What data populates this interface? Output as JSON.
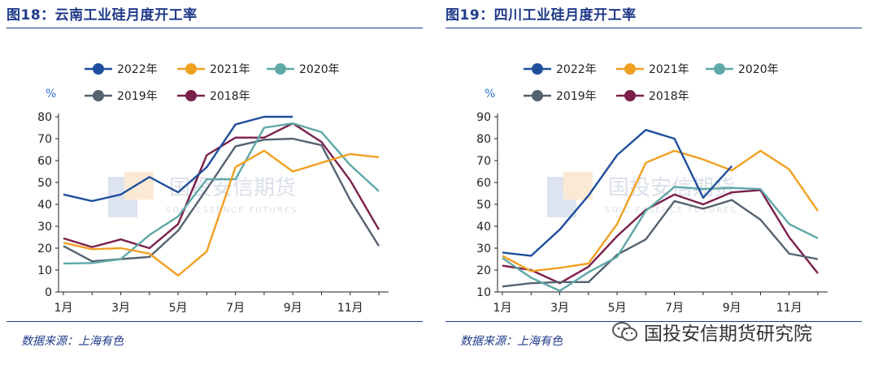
{
  "charts": [
    {
      "title": "图18：云南工业硅月度开工率",
      "source": "数据来源：上海有色",
      "watermark": {
        "name": "国投安信期货",
        "subtitle": "SDIC ESSENCE FUTURES"
      },
      "chart_data": {
        "type": "line",
        "ylabel": "%",
        "ylim": [
          0,
          80
        ],
        "yticks": [
          0,
          10,
          20,
          30,
          40,
          50,
          60,
          70,
          80
        ],
        "x": [
          1,
          2,
          3,
          4,
          5,
          6,
          7,
          8,
          9,
          10,
          11,
          12
        ],
        "xtick_positions": [
          1,
          3,
          5,
          7,
          9,
          11
        ],
        "xtick_labels": [
          "1月",
          "3月",
          "5月",
          "7月",
          "9月",
          "11月"
        ],
        "series": [
          {
            "name": "2022年",
            "color": "#1f4e9c",
            "values": [
              44.5,
              41.5,
              44.5,
              52.5,
              45.5,
              57,
              76.5,
              80,
              80,
              null,
              null,
              null
            ]
          },
          {
            "name": "2021年",
            "color": "#f0a020",
            "values": [
              22.5,
              19.5,
              20,
              17.5,
              7.5,
              18.5,
              57,
              64.5,
              55,
              59,
              63,
              61.5
            ]
          },
          {
            "name": "2020年",
            "color": "#5fa8a8",
            "values": [
              13,
              13.2,
              15,
              26,
              34.5,
              51.5,
              51.5,
              75,
              77,
              73,
              58,
              46
            ]
          },
          {
            "name": "2019年",
            "color": "#556270",
            "values": [
              21,
              14,
              15,
              16,
              28,
              47,
              66.5,
              69.5,
              70,
              67,
              42,
              21
            ]
          },
          {
            "name": "2018年",
            "color": "#7a1f4a",
            "values": [
              24.5,
              20.5,
              24,
              20,
              31,
              62.5,
              70.5,
              70.5,
              77,
              68.5,
              51,
              28.5
            ]
          }
        ]
      }
    },
    {
      "title": "图19：四川工业硅月度开工率",
      "source": "数据来源：上海有色",
      "watermark": {
        "name": "国投安信期货",
        "subtitle": "SDIC ESSENCE FUTURES"
      },
      "chart_data": {
        "type": "line",
        "ylabel": "%",
        "ylim": [
          10,
          90
        ],
        "yticks": [
          10,
          20,
          30,
          40,
          50,
          60,
          70,
          80,
          90
        ],
        "x": [
          1,
          2,
          3,
          4,
          5,
          6,
          7,
          8,
          9,
          10,
          11,
          12
        ],
        "xtick_positions": [
          1,
          3,
          5,
          7,
          9,
          11
        ],
        "xtick_labels": [
          "1月",
          "3月",
          "5月",
          "7月",
          "9月",
          "11月"
        ],
        "series": [
          {
            "name": "2022年",
            "color": "#1f4e9c",
            "values": [
              28,
              26.5,
              38.5,
              54,
              72.5,
              84,
              80,
              53,
              67.5,
              null,
              null,
              null
            ]
          },
          {
            "name": "2021年",
            "color": "#f0a020",
            "values": [
              26.5,
              19.5,
              21,
              23,
              41,
              69,
              74.5,
              70.5,
              65.5,
              74.5,
              66,
              47
            ]
          },
          {
            "name": "2020年",
            "color": "#5fa8a8",
            "values": [
              25.5,
              16.5,
              10.5,
              19,
              26,
              47,
              58,
              57,
              57.5,
              57,
              41,
              34.5
            ]
          },
          {
            "name": "2019年",
            "color": "#556270",
            "values": [
              12.5,
              14,
              14.5,
              14.5,
              27,
              34,
              51.5,
              48,
              52,
              43,
              27.5,
              25
            ]
          },
          {
            "name": "2018年",
            "color": "#7a1f4a",
            "values": [
              22,
              20,
              14,
              21.5,
              35.5,
              47.5,
              54.5,
              50,
              55.5,
              56.5,
              35,
              18.5
            ]
          }
        ]
      }
    }
  ],
  "footer_brand": "国投安信期货研究院"
}
